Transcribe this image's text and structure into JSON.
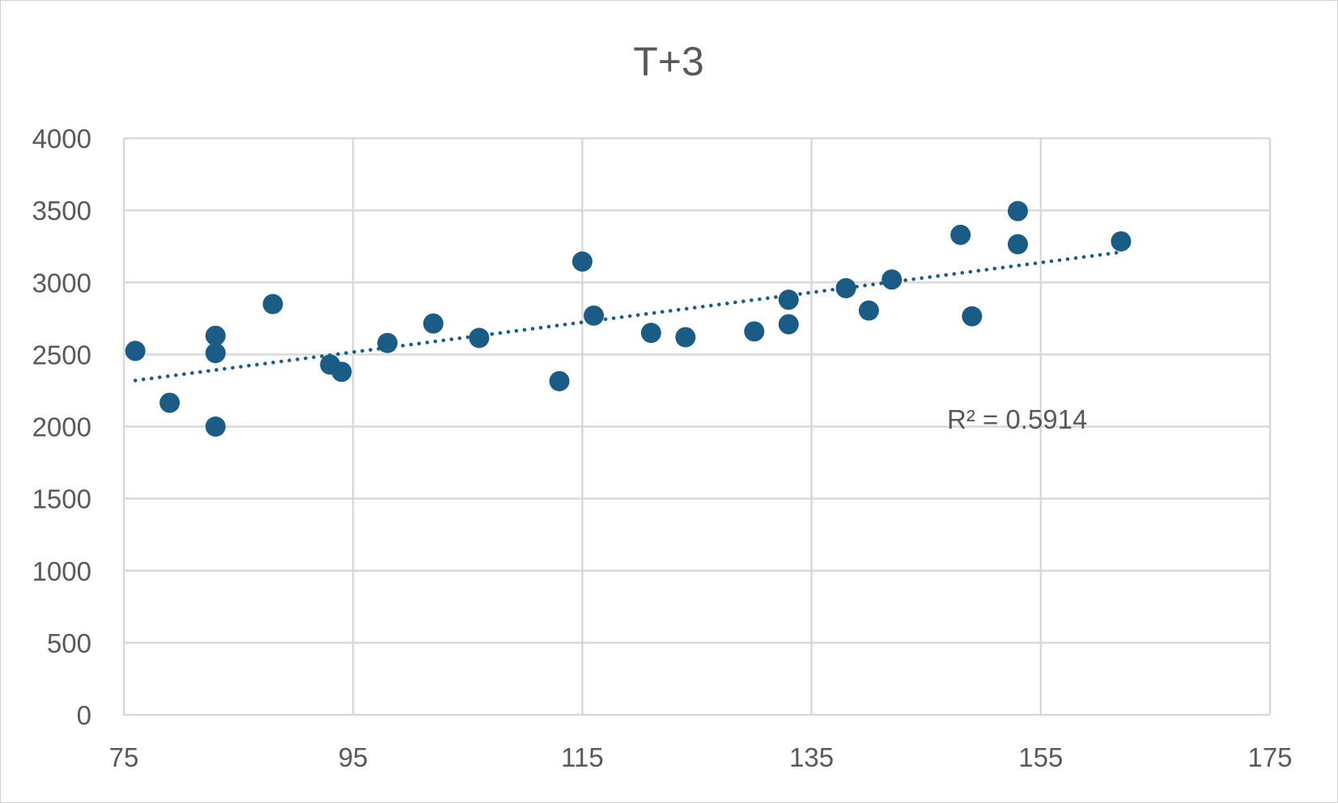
{
  "chart_data": {
    "type": "scatter",
    "title": "T+3",
    "xlabel": "",
    "ylabel": "",
    "xlim": [
      75,
      175
    ],
    "ylim": [
      0,
      4000
    ],
    "x_ticks": [
      75,
      95,
      115,
      135,
      155,
      175
    ],
    "y_ticks": [
      0,
      500,
      1000,
      1500,
      2000,
      2500,
      3000,
      3500,
      4000
    ],
    "grid": true,
    "legend": "none",
    "series": [
      {
        "color": "#1a5c85",
        "points": [
          {
            "x": 76,
            "y": 2525
          },
          {
            "x": 79,
            "y": 2165
          },
          {
            "x": 83,
            "y": 2000
          },
          {
            "x": 83,
            "y": 2510
          },
          {
            "x": 83,
            "y": 2630
          },
          {
            "x": 88,
            "y": 2850
          },
          {
            "x": 93,
            "y": 2430
          },
          {
            "x": 94,
            "y": 2380
          },
          {
            "x": 98,
            "y": 2580
          },
          {
            "x": 102,
            "y": 2715
          },
          {
            "x": 106,
            "y": 2615
          },
          {
            "x": 113,
            "y": 2315
          },
          {
            "x": 115,
            "y": 3145
          },
          {
            "x": 116,
            "y": 2770
          },
          {
            "x": 121,
            "y": 2650
          },
          {
            "x": 124,
            "y": 2620
          },
          {
            "x": 130,
            "y": 2660
          },
          {
            "x": 133,
            "y": 2880
          },
          {
            "x": 133,
            "y": 2710
          },
          {
            "x": 138,
            "y": 2960
          },
          {
            "x": 140,
            "y": 2805
          },
          {
            "x": 142,
            "y": 3020
          },
          {
            "x": 148,
            "y": 3330
          },
          {
            "x": 149,
            "y": 2765
          },
          {
            "x": 153,
            "y": 3495
          },
          {
            "x": 153,
            "y": 3265
          },
          {
            "x": 162,
            "y": 3285
          }
        ]
      }
    ],
    "trendline": {
      "type": "linear",
      "style": "dotted",
      "color": "#1a5c85",
      "x_start": 76,
      "y_start": 2320,
      "x_end": 162,
      "y_end": 3210,
      "label": "R² = 0.5914"
    }
  }
}
